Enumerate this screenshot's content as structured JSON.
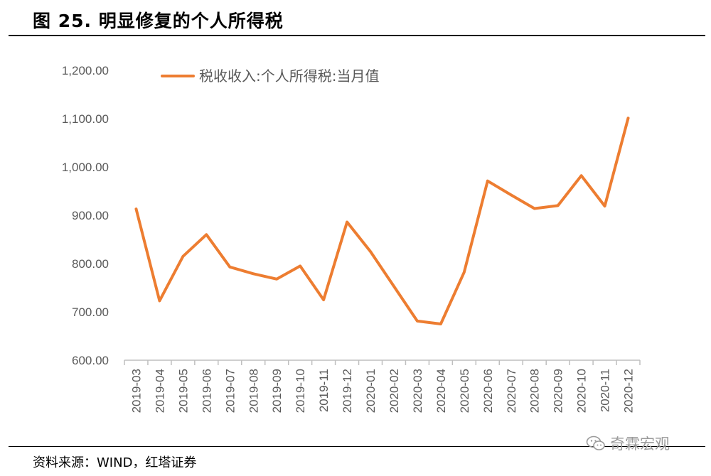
{
  "title": "图 25. 明显修复的个人所得税",
  "source": "资料来源：WIND，红塔证券",
  "watermark": {
    "text": "奇霖宏观",
    "icon": "wechat-icon"
  },
  "colors": {
    "line": "#ED7D31",
    "axis": "#BFBFBF",
    "tick_text": "#595959"
  },
  "chart_data": {
    "type": "line",
    "title": "",
    "xlabel": "",
    "ylabel": "",
    "ylim": [
      600,
      1200
    ],
    "yticks": [
      "600.00",
      "700.00",
      "800.00",
      "900.00",
      "1,000.00",
      "1,100.00",
      "1,200.00"
    ],
    "grid": false,
    "legend_position": "top-left",
    "categories": [
      "2019-03",
      "2019-04",
      "2019-05",
      "2019-06",
      "2019-07",
      "2019-08",
      "2019-09",
      "2019-10",
      "2019-11",
      "2019-12",
      "2020-01",
      "2020-02",
      "2020-03",
      "2020-04",
      "2020-05",
      "2020-06",
      "2020-07",
      "2020-08",
      "2020-09",
      "2020-10",
      "2020-11",
      "2020-12"
    ],
    "series": [
      {
        "name": "税收收入:个人所得税:当月值",
        "values": [
          913,
          723,
          815,
          860,
          793,
          779,
          768,
          795,
          725,
          886,
          825,
          753,
          681,
          675,
          782,
          971,
          942,
          914,
          920,
          982,
          919,
          1101
        ]
      }
    ]
  }
}
